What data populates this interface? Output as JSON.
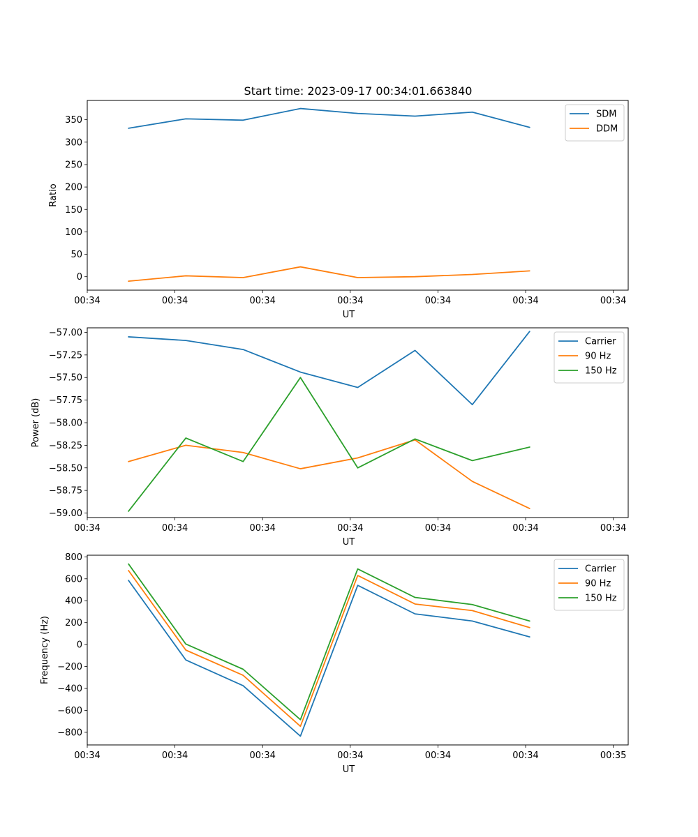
{
  "title": "Start time: 2023-09-17 00:34:01.663840",
  "colors": {
    "c0": "#1f77b4",
    "c1": "#ff7f0e",
    "c2": "#2ca02c"
  },
  "chart_data": [
    {
      "type": "line",
      "xlabel": "UT",
      "ylabel": "Ratio",
      "x": [
        0,
        1,
        2,
        3,
        4,
        5,
        6,
        7
      ],
      "xlim": [
        -0.72,
        8.72
      ],
      "xticks": [
        -0.72,
        0.81,
        2.34,
        3.87,
        5.4,
        6.93,
        8.46
      ],
      "xtick_labels": [
        "00:34",
        "00:34",
        "00:34",
        "00:34",
        "00:34",
        "00:34",
        "00:34"
      ],
      "ylim": [
        -30,
        393
      ],
      "yticks": [
        0,
        50,
        100,
        150,
        200,
        250,
        300,
        350
      ],
      "ytick_labels": [
        "0",
        "50",
        "100",
        "150",
        "200",
        "250",
        "300",
        "350"
      ],
      "legend_position": "top-right",
      "series": [
        {
          "name": "SDM",
          "color": "#1f77b4",
          "values": [
            331,
            352,
            349,
            375,
            364,
            358,
            367,
            333
          ]
        },
        {
          "name": "DDM",
          "color": "#ff7f0e",
          "values": [
            -10,
            2,
            -2,
            22,
            -2,
            0,
            5,
            13
          ]
        }
      ]
    },
    {
      "type": "line",
      "xlabel": "UT",
      "ylabel": "Power (dB)",
      "x": [
        0,
        1,
        2,
        3,
        4,
        5,
        6,
        7
      ],
      "xlim": [
        -0.72,
        8.72
      ],
      "xticks": [
        -0.72,
        0.81,
        2.34,
        3.87,
        5.4,
        6.93,
        8.46
      ],
      "xtick_labels": [
        "00:34",
        "00:34",
        "00:34",
        "00:34",
        "00:34",
        "00:34",
        "00:34"
      ],
      "ylim": [
        -59.05,
        -56.95
      ],
      "yticks": [
        -59.0,
        -58.75,
        -58.5,
        -58.25,
        -58.0,
        -57.75,
        -57.5,
        -57.25,
        -57.0
      ],
      "ytick_labels": [
        "−59.00",
        "−58.75",
        "−58.50",
        "−58.25",
        "−58.00",
        "−57.75",
        "−57.50",
        "−57.25",
        "−57.00"
      ],
      "legend_position": "top-right",
      "series": [
        {
          "name": "Carrier",
          "color": "#1f77b4",
          "values": [
            -57.05,
            -57.09,
            -57.19,
            -57.44,
            -57.61,
            -57.2,
            -57.8,
            -56.99
          ]
        },
        {
          "name": "90 Hz",
          "color": "#ff7f0e",
          "values": [
            -58.43,
            -58.25,
            -58.33,
            -58.51,
            -58.39,
            -58.19,
            -58.65,
            -58.95
          ]
        },
        {
          "name": "150 Hz",
          "color": "#2ca02c",
          "values": [
            -58.98,
            -58.17,
            -58.43,
            -57.5,
            -58.5,
            -58.18,
            -58.42,
            -58.27
          ]
        }
      ]
    },
    {
      "type": "line",
      "xlabel": "UT",
      "ylabel": "Frequency (Hz)",
      "x": [
        0,
        1,
        2,
        3,
        4,
        5,
        6,
        7
      ],
      "xlim": [
        -0.72,
        8.72
      ],
      "xticks": [
        -0.72,
        0.81,
        2.34,
        3.87,
        5.4,
        6.93,
        8.46
      ],
      "xtick_labels": [
        "00:34",
        "00:34",
        "00:34",
        "00:34",
        "00:34",
        "00:34",
        "00:35"
      ],
      "ylim": [
        -915,
        815
      ],
      "yticks": [
        -800,
        -600,
        -400,
        -200,
        0,
        200,
        400,
        600,
        800
      ],
      "ytick_labels": [
        "−800",
        "−600",
        "−400",
        "−200",
        "0",
        "200",
        "400",
        "600",
        "800"
      ],
      "legend_position": "top-right",
      "series": [
        {
          "name": "Carrier",
          "color": "#1f77b4",
          "values": [
            585,
            -140,
            -375,
            -835,
            540,
            280,
            215,
            70
          ]
        },
        {
          "name": "90 Hz",
          "color": "#ff7f0e",
          "values": [
            675,
            -50,
            -280,
            -745,
            630,
            370,
            310,
            155
          ]
        },
        {
          "name": "150 Hz",
          "color": "#2ca02c",
          "values": [
            735,
            5,
            -225,
            -685,
            690,
            430,
            365,
            215
          ]
        }
      ]
    }
  ]
}
